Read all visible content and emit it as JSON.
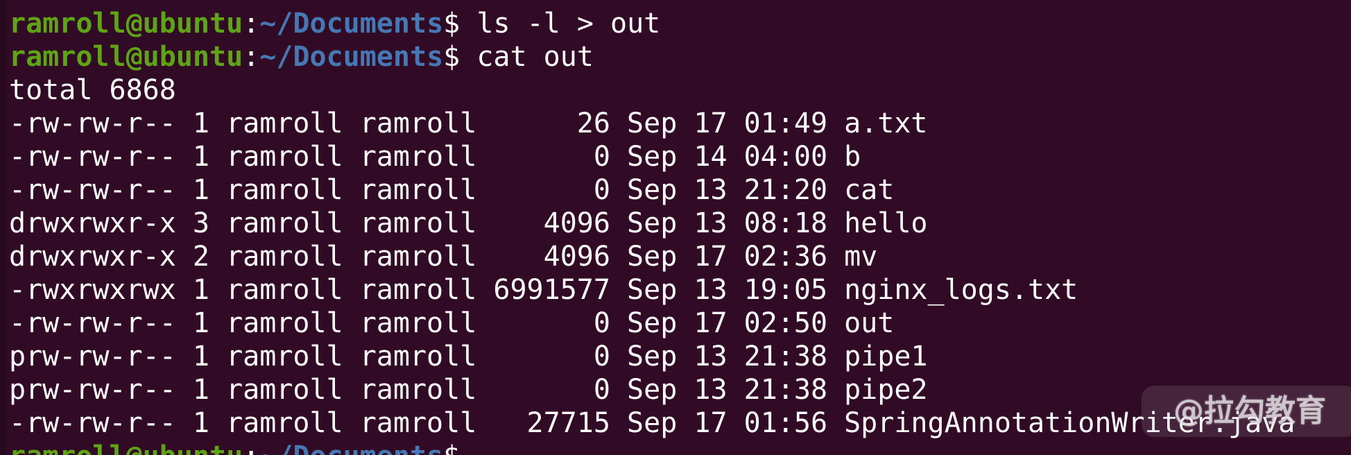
{
  "colors": {
    "background": "#310b25",
    "left_edge": "#27081d",
    "foreground": "#ffffff",
    "prompt_user_green": "#5fa414",
    "prompt_path_blue": "#4678b4",
    "watermark_text": "rgba(226,220,226,0.8)",
    "watermark_bg": "rgba(216,205,216,0.13)"
  },
  "terminal": {
    "prompt": {
      "user_host": "ramroll@ubuntu",
      "colon": ":",
      "path": "~/Documents",
      "dollar": "$"
    },
    "lines": [
      {
        "type": "prompt",
        "command": "ls -l > out"
      },
      {
        "type": "prompt",
        "command": "cat out"
      },
      {
        "type": "text",
        "text": "total 6868"
      },
      {
        "type": "file",
        "permissions": "-rw-rw-r--",
        "links": "1",
        "owner": "ramroll",
        "group": "ramroll",
        "size": "26",
        "month": "Sep",
        "day": "17",
        "time": "01:49",
        "name": "a.txt"
      },
      {
        "type": "file",
        "permissions": "-rw-rw-r--",
        "links": "1",
        "owner": "ramroll",
        "group": "ramroll",
        "size": "0",
        "month": "Sep",
        "day": "14",
        "time": "04:00",
        "name": "b"
      },
      {
        "type": "file",
        "permissions": "-rw-rw-r--",
        "links": "1",
        "owner": "ramroll",
        "group": "ramroll",
        "size": "0",
        "month": "Sep",
        "day": "13",
        "time": "21:20",
        "name": "cat"
      },
      {
        "type": "file",
        "permissions": "drwxrwxr-x",
        "links": "3",
        "owner": "ramroll",
        "group": "ramroll",
        "size": "4096",
        "month": "Sep",
        "day": "13",
        "time": "08:18",
        "name": "hello"
      },
      {
        "type": "file",
        "permissions": "drwxrwxr-x",
        "links": "2",
        "owner": "ramroll",
        "group": "ramroll",
        "size": "4096",
        "month": "Sep",
        "day": "17",
        "time": "02:36",
        "name": "mv"
      },
      {
        "type": "file",
        "permissions": "-rwxrwxrwx",
        "links": "1",
        "owner": "ramroll",
        "group": "ramroll",
        "size": "6991577",
        "month": "Sep",
        "day": "13",
        "time": "19:05",
        "name": "nginx_logs.txt"
      },
      {
        "type": "file",
        "permissions": "-rw-rw-r--",
        "links": "1",
        "owner": "ramroll",
        "group": "ramroll",
        "size": "0",
        "month": "Sep",
        "day": "17",
        "time": "02:50",
        "name": "out"
      },
      {
        "type": "file",
        "permissions": "prw-rw-r--",
        "links": "1",
        "owner": "ramroll",
        "group": "ramroll",
        "size": "0",
        "month": "Sep",
        "day": "13",
        "time": "21:38",
        "name": "pipe1"
      },
      {
        "type": "file",
        "permissions": "prw-rw-r--",
        "links": "1",
        "owner": "ramroll",
        "group": "ramroll",
        "size": "0",
        "month": "Sep",
        "day": "13",
        "time": "21:38",
        "name": "pipe2"
      },
      {
        "type": "file",
        "permissions": "-rw-rw-r--",
        "links": "1",
        "owner": "ramroll",
        "group": "ramroll",
        "size": "27715",
        "month": "Sep",
        "day": "17",
        "time": "01:56",
        "name": "SpringAnnotationWriter.java"
      },
      {
        "type": "prompt",
        "command": ""
      }
    ],
    "size_column_width": 7
  },
  "watermark": {
    "text": "@拉勾教育"
  }
}
